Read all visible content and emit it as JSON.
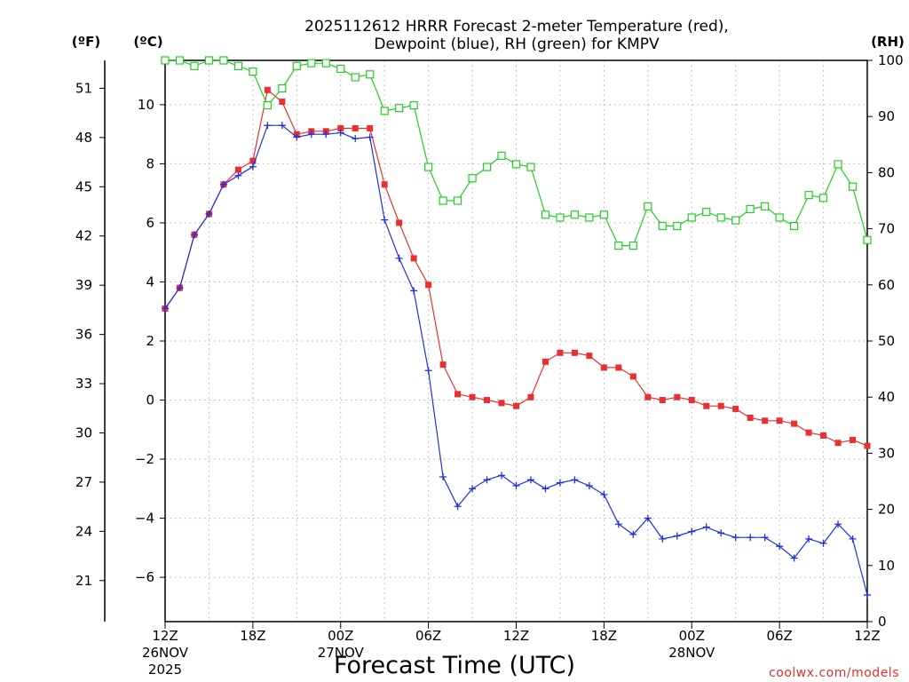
{
  "title_line1": "2025112612 HRRR Forecast 2-meter Temperature (red),",
  "title_line2": "Dewpoint (blue), RH (green) for KMPV",
  "unit_f": "(ºF)",
  "unit_c": "(ºC)",
  "unit_rh": "(RH)",
  "xlabel": "Forecast Time (UTC)",
  "credit": "coolwx.com/models",
  "colors": {
    "temp": "#e83030",
    "dewpoint": "#2030e0",
    "rh": "#20d020",
    "grid": "#b0b0b0"
  },
  "chart_data": {
    "type": "line",
    "title": "2025112612 HRRR Forecast 2-meter Temperature (red), Dewpoint (blue), RH (green) for KMPV",
    "xlabel": "Forecast Time (UTC)",
    "x_hours": [
      0,
      1,
      2,
      3,
      4,
      5,
      6,
      7,
      8,
      9,
      10,
      11,
      12,
      13,
      14,
      15,
      16,
      17,
      18,
      19,
      20,
      21,
      22,
      23,
      24,
      25,
      26,
      27,
      28,
      29,
      30,
      31,
      32,
      33,
      34,
      35,
      36,
      37,
      38,
      39,
      40,
      41,
      42,
      43,
      44,
      45,
      46,
      47,
      48
    ],
    "xlim": [
      0,
      48
    ],
    "xticks": [
      {
        "h": 0,
        "label": "12Z",
        "date": "26NOV",
        "year": "2025"
      },
      {
        "h": 6,
        "label": "18Z"
      },
      {
        "h": 12,
        "label": "00Z",
        "date": "27NOV"
      },
      {
        "h": 18,
        "label": "06Z"
      },
      {
        "h": 24,
        "label": "12Z"
      },
      {
        "h": 30,
        "label": "18Z"
      },
      {
        "h": 36,
        "label": "00Z",
        "date": "28NOV"
      },
      {
        "h": 42,
        "label": "06Z"
      },
      {
        "h": 48,
        "label": "12Z"
      }
    ],
    "y_left_c": {
      "ylim": [
        -7.5,
        11.5
      ],
      "ticks": [
        -6,
        -4,
        -2,
        0,
        2,
        4,
        6,
        8,
        10
      ]
    },
    "y_left_f": {
      "ticks": [
        21,
        24,
        27,
        30,
        33,
        36,
        39,
        42,
        45,
        48,
        51
      ]
    },
    "y_right_rh": {
      "ylim": [
        0,
        100
      ],
      "ticks": [
        0,
        10,
        20,
        30,
        40,
        50,
        60,
        70,
        80,
        90,
        100
      ]
    },
    "series": [
      {
        "name": "Temperature (°C)",
        "axis": "celsius",
        "marker": "filled-square",
        "values": [
          3.1,
          3.8,
          5.6,
          6.3,
          7.3,
          7.8,
          8.1,
          10.5,
          10.1,
          9.0,
          9.1,
          9.1,
          9.2,
          9.2,
          9.2,
          7.3,
          6.0,
          4.8,
          3.9,
          1.2,
          0.2,
          0.1,
          0.0,
          -0.1,
          -0.2,
          0.1,
          1.3,
          1.6,
          1.6,
          1.5,
          1.1,
          1.1,
          0.8,
          0.1,
          0.0,
          0.1,
          0.0,
          -0.2,
          -0.2,
          -0.3,
          -0.6,
          -0.7,
          -0.7,
          -0.8,
          -1.1,
          -1.2,
          -1.45,
          -1.35,
          -1.55
        ]
      },
      {
        "name": "Dewpoint (°C)",
        "axis": "celsius",
        "marker": "plus",
        "values": [
          3.1,
          3.8,
          5.6,
          6.3,
          7.3,
          7.6,
          7.9,
          9.3,
          9.3,
          8.9,
          9.0,
          9.0,
          9.05,
          8.85,
          8.9,
          6.1,
          4.8,
          3.7,
          1.0,
          -2.6,
          -3.6,
          -3.0,
          -2.7,
          -2.55,
          -2.9,
          -2.7,
          -3.0,
          -2.8,
          -2.7,
          -2.9,
          -3.2,
          -4.2,
          -4.55,
          -4.0,
          -4.7,
          -4.6,
          -4.45,
          -4.3,
          -4.5,
          -4.65,
          -4.65,
          -4.65,
          -4.95,
          -5.35,
          -4.7,
          -4.85,
          -4.2,
          -4.7,
          -6.6
        ]
      },
      {
        "name": "Relative Humidity (%)",
        "axis": "rh",
        "marker": "open-square",
        "values": [
          100,
          100,
          99,
          100,
          100,
          99,
          98,
          92,
          95,
          99,
          99.5,
          99.5,
          98.5,
          97,
          97.5,
          91,
          91.5,
          92,
          81,
          75,
          75,
          79,
          81,
          83,
          81.5,
          81,
          72.5,
          72,
          72.5,
          72,
          72.5,
          67,
          67,
          74,
          70.5,
          70.5,
          72,
          73,
          72,
          71.5,
          73.5,
          74,
          72,
          70.5,
          76,
          75.5,
          81.5,
          77.5,
          68
        ]
      }
    ]
  }
}
